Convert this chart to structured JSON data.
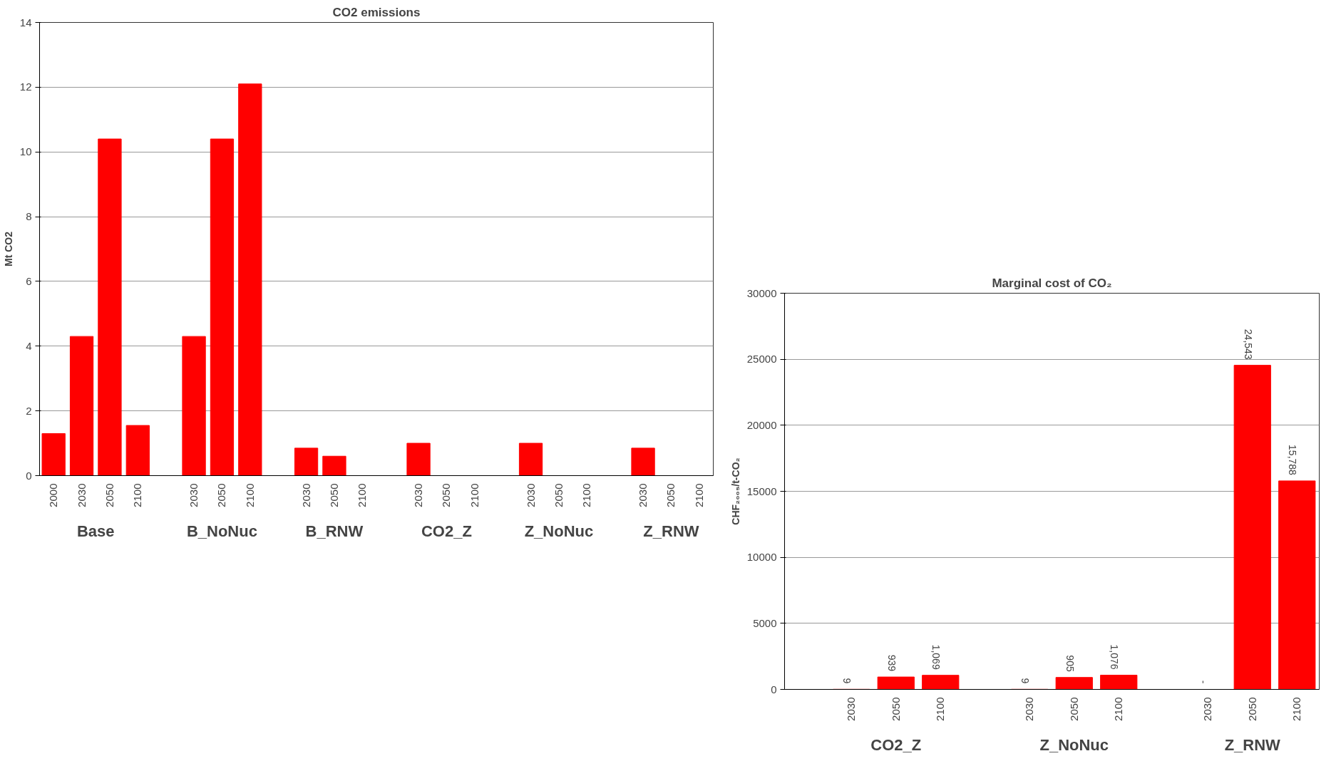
{
  "chart_data": [
    {
      "type": "bar",
      "title": "CO2 emissions",
      "ylabel": "Mt CO2",
      "categories": [
        "2000",
        "2030",
        "2050",
        "2100",
        null,
        "2030",
        "2050",
        "2100",
        null,
        "2030",
        "2050",
        "2100",
        null,
        "2030",
        "2050",
        "2100",
        null,
        "2030",
        "2050",
        "2100",
        null,
        "2030",
        "2050",
        "2100"
      ],
      "values": [
        1.3,
        4.3,
        10.4,
        1.55,
        null,
        4.3,
        10.4,
        12.1,
        null,
        0.85,
        0.6,
        0,
        null,
        1.0,
        0,
        0,
        null,
        1.0,
        0,
        0,
        null,
        0.85,
        0,
        0
      ],
      "color": "#ff0000",
      "ylim": [
        0,
        14
      ],
      "yticks": [
        0,
        2,
        4,
        6,
        8,
        10,
        12,
        14
      ],
      "grid": "y",
      "annotations": [
        "Base",
        "B_NoNuc",
        "B_RNW",
        "CO2_Z",
        "Z_NoNuc",
        "Z_RNW"
      ]
    },
    {
      "type": "bar",
      "title": "Marginal cost of CO₂",
      "ylabel": "CHF₂₀₀₅/t-CO₂",
      "categories": [
        null,
        "2030",
        "2050",
        "2100",
        null,
        "2030",
        "2050",
        "2100",
        null,
        "2030",
        "2050",
        "2100"
      ],
      "values": [
        null,
        9,
        939,
        1069,
        null,
        9,
        905,
        1076,
        null,
        0,
        24543,
        15788
      ],
      "value_labels": [
        null,
        "9",
        "939",
        "1,069",
        null,
        "9",
        "905",
        "1,076",
        null,
        "-",
        "24,543",
        "15,788"
      ],
      "color": "#ff0000",
      "ylim": [
        0,
        30000
      ],
      "yticks": [
        0,
        5000,
        10000,
        15000,
        20000,
        25000,
        30000
      ],
      "grid": "y",
      "annotations": [
        "CO2_Z",
        "Z_NoNuc",
        "Z_RNW"
      ]
    }
  ]
}
